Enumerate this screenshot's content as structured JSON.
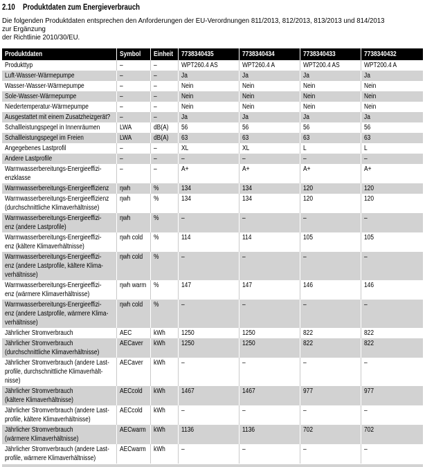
{
  "page": {
    "section_number": "2.10",
    "section_title": "Produktdaten zum Energieverbrauch",
    "intro": "Die folgenden Produktdaten entsprechen den Anforderungen der EU-Verordnungen 811/2013, 812/2013, 813/2013 und 814/2013 zur Ergänzung\nder Richtlinie 2010/30/EU."
  },
  "colors": {
    "header_bg": "#000000",
    "header_text": "#ffffff",
    "row_alt_bg": "#d2d2d2",
    "grid_on_white": "#c9c9c9",
    "grid_on_gray": "#ffffff",
    "text": "#000000"
  },
  "table": {
    "columns": [
      "Produktdaten",
      "Symbol",
      "Einheit",
      "7738340435",
      "7738340434",
      "7738340433",
      "7738340432"
    ],
    "rows": [
      {
        "label": "Produkttyp",
        "symbol": "–",
        "unit": "–",
        "values": [
          "WPT260.4 AS",
          "WPT260.4 A",
          "WPT200.4 AS",
          "WPT200.4 A"
        ]
      },
      {
        "label": "Luft-Wasser-Wärmepumpe",
        "symbol": "–",
        "unit": "–",
        "values": [
          "Ja",
          "Ja",
          "Ja",
          "Ja"
        ]
      },
      {
        "label": "Wasser-Wasser-Wärmepumpe",
        "symbol": "–",
        "unit": "–",
        "values": [
          "Nein",
          "Nein",
          "Nein",
          "Nein"
        ]
      },
      {
        "label": "Sole-Wasser-Wärmepumpe",
        "symbol": "–",
        "unit": "–",
        "values": [
          "Nein",
          "Nein",
          "Nein",
          "Nein"
        ]
      },
      {
        "label": "Niedertemperatur-Wärmepumpe",
        "symbol": "–",
        "unit": "–",
        "values": [
          "Nein",
          "Nein",
          "Nein",
          "Nein"
        ]
      },
      {
        "label": "Ausgestattet mit einem Zusatzheizgerät?",
        "symbol": "–",
        "unit": "–",
        "values": [
          "Ja",
          "Ja",
          "Ja",
          "Ja"
        ]
      },
      {
        "label": "Schallleistungspegel in Innenräumen",
        "symbol": "LWA",
        "unit": "dB(A)",
        "values": [
          "56",
          "56",
          "56",
          "56"
        ]
      },
      {
        "label": "Schallleistungspegel im Freien",
        "symbol": "LWA",
        "unit": "dB(A)",
        "values": [
          "63",
          "63",
          "63",
          "63"
        ]
      },
      {
        "label": "Angegebenes Lastprofil",
        "symbol": "–",
        "unit": "–",
        "values": [
          "XL",
          "XL",
          "L",
          "L"
        ]
      },
      {
        "label": "Andere Lastprofile",
        "symbol": "–",
        "unit": "–",
        "values": [
          "–",
          "–",
          "–",
          "–"
        ]
      },
      {
        "label": "Warmwasserbereitungs-Energieeffizi-\nenzklasse",
        "symbol": "–",
        "unit": "–",
        "values": [
          "A+",
          "A+",
          "A+",
          "A+"
        ]
      },
      {
        "label": "Warmwasserbereitungs-Energieeffizienz",
        "symbol": "ηwh",
        "unit": "%",
        "values": [
          "134",
          "134",
          "120",
          "120"
        ]
      },
      {
        "label": "Warmwasserbereitungs-Energieeffizienz\n(durchschnittliche Klimaverhältnisse)",
        "symbol": "ηwh",
        "unit": "%",
        "values": [
          "134",
          "134",
          "120",
          "120"
        ]
      },
      {
        "label": "Warmwasserbereitungs-Energieeffizi-\nenz (andere Lastprofile)",
        "symbol": "ηwh",
        "unit": "%",
        "values": [
          "–",
          "–",
          "–",
          "–"
        ]
      },
      {
        "label": "Warmwasserbereitungs-Energieeffizi-\nenz (kältere Klimaverhältnisse)",
        "symbol": "ηwh cold",
        "unit": "%",
        "values": [
          "114",
          "114",
          "105",
          "105"
        ]
      },
      {
        "label": "Warmwasserbereitungs-Energieeffizi-\nenz (andere Lastprofile, kältere Klima-\nverhältnisse)",
        "symbol": "ηwh cold",
        "unit": "%",
        "values": [
          "–",
          "–",
          "–",
          "–"
        ]
      },
      {
        "label": "Warmwasserbereitungs-Energieeffizi-\nenz (wärmere Klimaverhältnisse)",
        "symbol": "ηwh warm",
        "unit": "%",
        "values": [
          "147",
          "147",
          "146",
          "146"
        ]
      },
      {
        "label": "Warmwasserbereitungs-Energieeffizi-\nenz (andere Lastprofile, wärmere Klima-\nverhältnisse)",
        "symbol": "ηwh cold",
        "unit": "%",
        "values": [
          "–",
          "–",
          "–",
          "–"
        ]
      },
      {
        "label": "Jährlicher Stromverbrauch",
        "symbol": "AEC",
        "unit": "kWh",
        "values": [
          "1250",
          "1250",
          "822",
          "822"
        ]
      },
      {
        "label": "Jährlicher Stromverbrauch\n(durchschnittliche Klimaverhältnisse)",
        "symbol": "AECaver",
        "unit": "kWh",
        "values": [
          "1250",
          "1250",
          "822",
          "822"
        ]
      },
      {
        "label": "Jährlicher Stromverbrauch (andere Last-\nprofile, durchschnittliche Klimaverhält-\nnisse)",
        "symbol": "AECaver",
        "unit": "kWh",
        "values": [
          "–",
          "–",
          "–",
          "–"
        ]
      },
      {
        "label": "Jährlicher Stromverbrauch\n(kältere Klimaverhältnisse)",
        "symbol": "AECcold",
        "unit": "kWh",
        "values": [
          "1467",
          "1467",
          "977",
          "977"
        ]
      },
      {
        "label": "Jährlicher Stromverbrauch (andere Last-\nprofile, kältere Klimaverhältnisse)",
        "symbol": "AECcold",
        "unit": "kWh",
        "values": [
          "–",
          "–",
          "–",
          "–"
        ]
      },
      {
        "label": "Jährlicher Stromverbrauch\n(wärmere Klimaverhältnisse)",
        "symbol": "AECwarm",
        "unit": "kWh",
        "values": [
          "1136",
          "1136",
          "702",
          "702"
        ]
      },
      {
        "label": "Jährlicher Stromverbrauch (andere Last-\nprofile, wärmere Klimaverhältnisse)",
        "symbol": "AECwarm",
        "unit": "kWh",
        "values": [
          "–",
          "–",
          "–",
          "–"
        ]
      }
    ]
  }
}
